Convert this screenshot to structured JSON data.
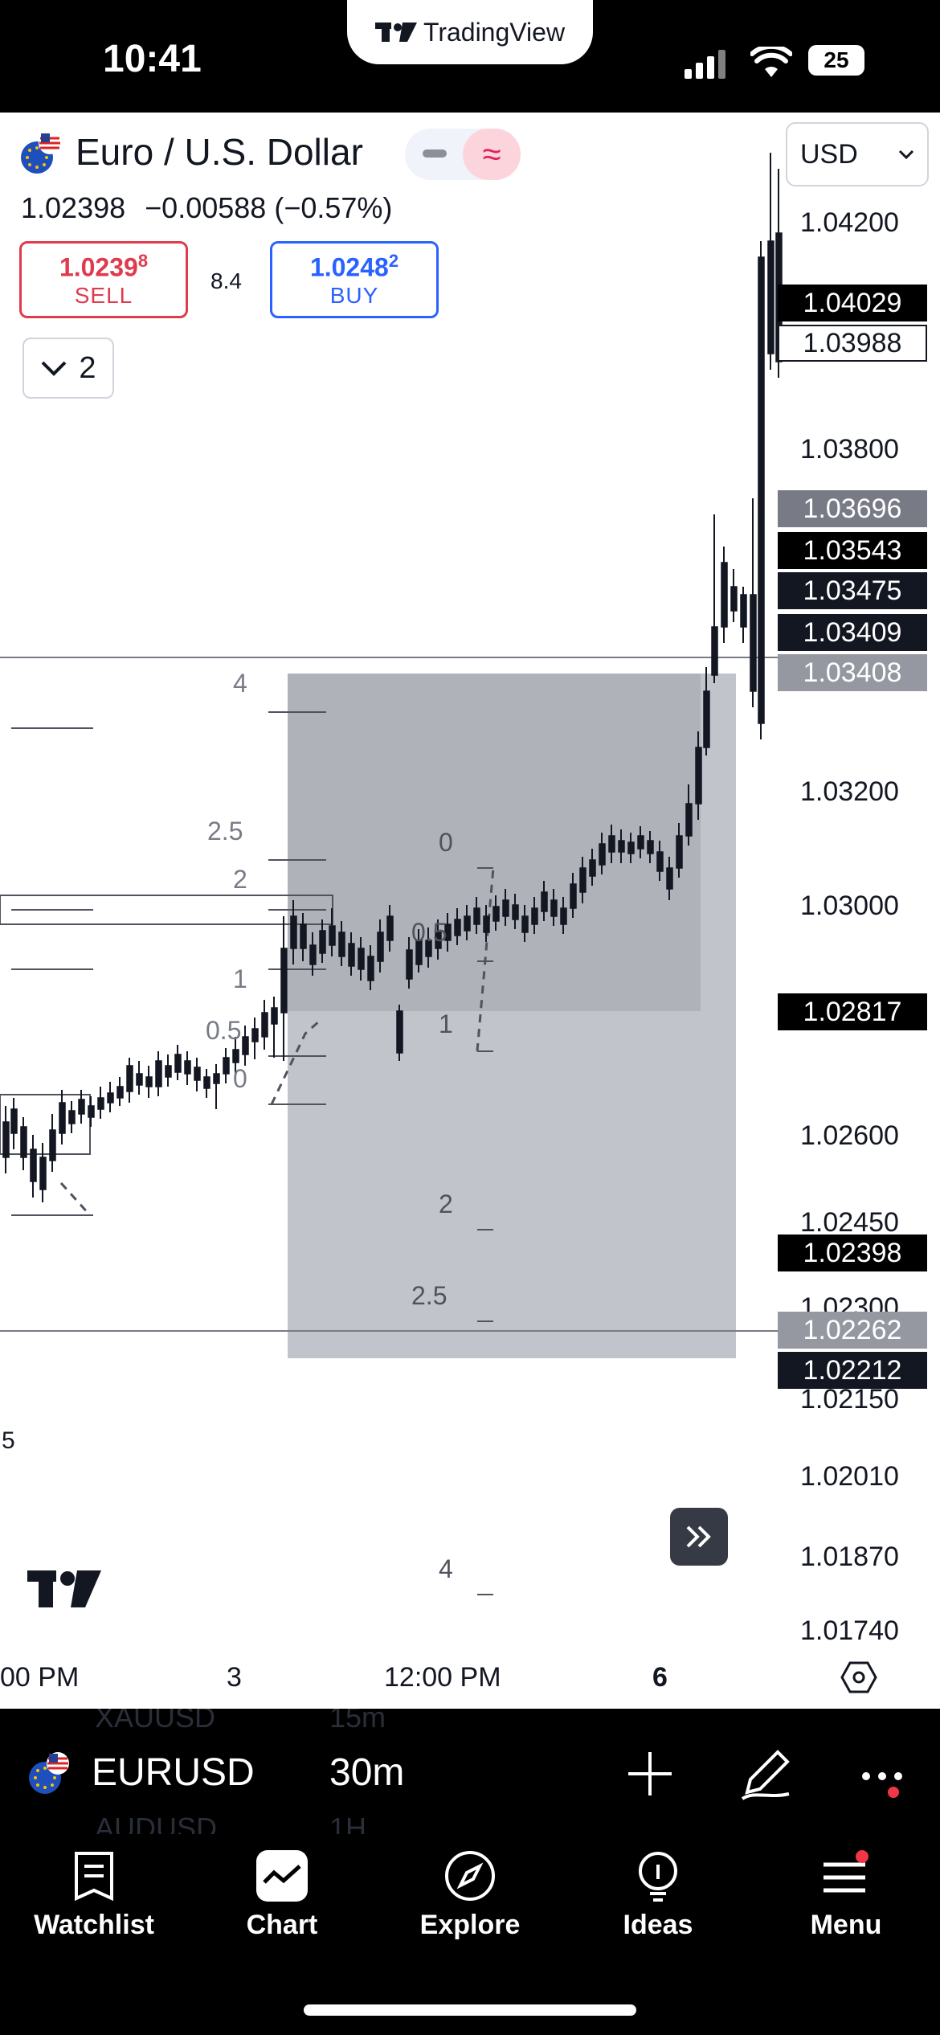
{
  "status_bar": {
    "time": "10:41",
    "app_badge": "TradingView",
    "battery": "25"
  },
  "header": {
    "symbol_name": "Euro / U.S. Dollar",
    "last_price": "1.02398",
    "change": "−0.00588",
    "change_pct": "(−0.57%)",
    "sell": {
      "price_main": "1.0239",
      "price_sup": "8",
      "label": "SELL"
    },
    "buy": {
      "price_main": "1.0248",
      "price_sup": "2",
      "label": "BUY"
    },
    "spread": "8.4",
    "collapse_count": "2",
    "currency": "USD"
  },
  "price_scale": {
    "ticks": [
      "1.04200",
      "1.03800",
      "1.03200",
      "1.03000",
      "1.02600",
      "1.02450",
      "1.02300",
      "1.02150",
      "1.02010",
      "1.01870",
      "1.01740"
    ],
    "labels": [
      {
        "value": "1.04029",
        "style": "black"
      },
      {
        "value": "1.03988",
        "style": "outline"
      },
      {
        "value": "1.03696",
        "style": "gray"
      },
      {
        "value": "1.03543",
        "style": "black"
      },
      {
        "value": "1.03475",
        "style": "black"
      },
      {
        "value": "1.03409",
        "style": "black"
      },
      {
        "value": "1.03408",
        "style": "gray"
      },
      {
        "value": "1.02817",
        "style": "black"
      },
      {
        "value": "1.02398",
        "style": "black"
      },
      {
        "value": "1.02262",
        "style": "gray"
      },
      {
        "value": "1.02212",
        "style": "black"
      }
    ]
  },
  "fib_levels_left": [
    "4",
    "2.5",
    "2",
    "1",
    "0.5",
    "0"
  ],
  "fib_levels_right": [
    "0",
    "0.5",
    "1",
    "2",
    "2.5",
    "4"
  ],
  "left_marker": "5",
  "time_axis": [
    "00 PM",
    "3",
    "12:00 PM",
    "6"
  ],
  "symbol_bar": {
    "symbol": "EURUSD",
    "interval": "30m",
    "ghost_above": [
      "XAUUSD",
      "15m"
    ],
    "ghost_below": [
      "AUDUSD",
      "1H"
    ]
  },
  "tabs": [
    {
      "label": "Watchlist",
      "icon": "watchlist-icon"
    },
    {
      "label": "Chart",
      "icon": "chart-icon"
    },
    {
      "label": "Explore",
      "icon": "compass-icon"
    },
    {
      "label": "Ideas",
      "icon": "lightbulb-icon"
    },
    {
      "label": "Menu",
      "icon": "menu-icon"
    }
  ]
}
